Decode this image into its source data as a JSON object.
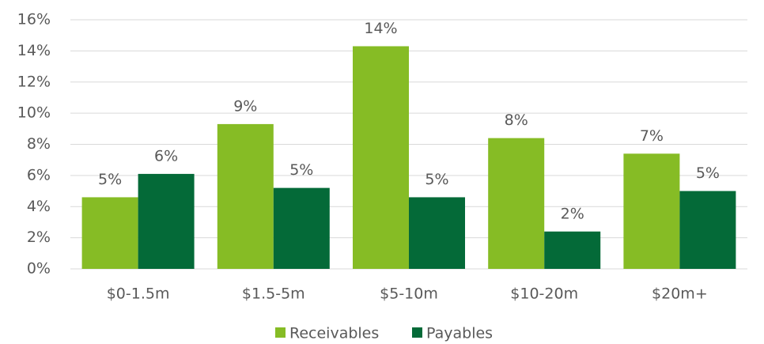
{
  "chart_data": {
    "type": "bar",
    "categories": [
      "$0-1.5m",
      "$1.5-5m",
      "$5-10m",
      "$10-20m",
      "$20m+"
    ],
    "series": [
      {
        "name": "Receivables",
        "color": "#86bc25",
        "values": [
          4.6,
          9.3,
          14.3,
          8.4,
          7.4
        ],
        "value_labels": [
          "5%",
          "9%",
          "14%",
          "8%",
          "7%"
        ]
      },
      {
        "name": "Payables",
        "color": "#046a38",
        "values": [
          6.1,
          5.2,
          4.6,
          2.4,
          5.0
        ],
        "value_labels": [
          "6%",
          "5%",
          "5%",
          "2%",
          "5%"
        ]
      }
    ],
    "ylim": [
      0,
      16
    ],
    "yticks": [
      {
        "value": 0,
        "label": "0%"
      },
      {
        "value": 2,
        "label": "2%"
      },
      {
        "value": 4,
        "label": "4%"
      },
      {
        "value": 6,
        "label": "6%"
      },
      {
        "value": 8,
        "label": "8%"
      },
      {
        "value": 10,
        "label": "10%"
      },
      {
        "value": 12,
        "label": "12%"
      },
      {
        "value": 14,
        "label": "14%"
      },
      {
        "value": 16,
        "label": "16%"
      }
    ],
    "grid": true,
    "legend": "bottom"
  }
}
